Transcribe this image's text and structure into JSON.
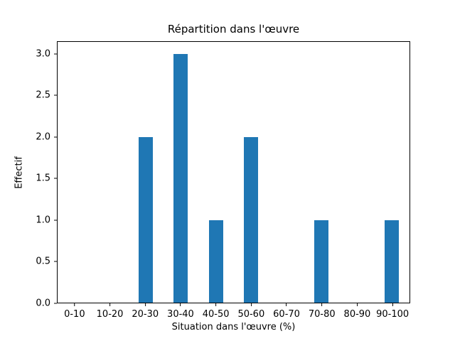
{
  "chart_data": {
    "type": "bar",
    "title": "Répartition dans l'œuvre",
    "xlabel": "Situation dans l'œuvre (%)",
    "ylabel": "Effectif",
    "categories": [
      "0-10",
      "10-20",
      "20-30",
      "30-40",
      "40-50",
      "50-60",
      "60-70",
      "70-80",
      "80-90",
      "90-100"
    ],
    "values": [
      0,
      0,
      2,
      3,
      1,
      2,
      0,
      1,
      0,
      1
    ],
    "yticks": [
      "0.0",
      "0.5",
      "1.0",
      "1.5",
      "2.0",
      "2.5",
      "3.0"
    ],
    "ylim": [
      0,
      3.15
    ],
    "bar_color": "#1f77b4",
    "bar_width_fraction": 0.4,
    "frame_color": "#000000",
    "background_color": "#ffffff",
    "grid": false,
    "legend": null
  }
}
